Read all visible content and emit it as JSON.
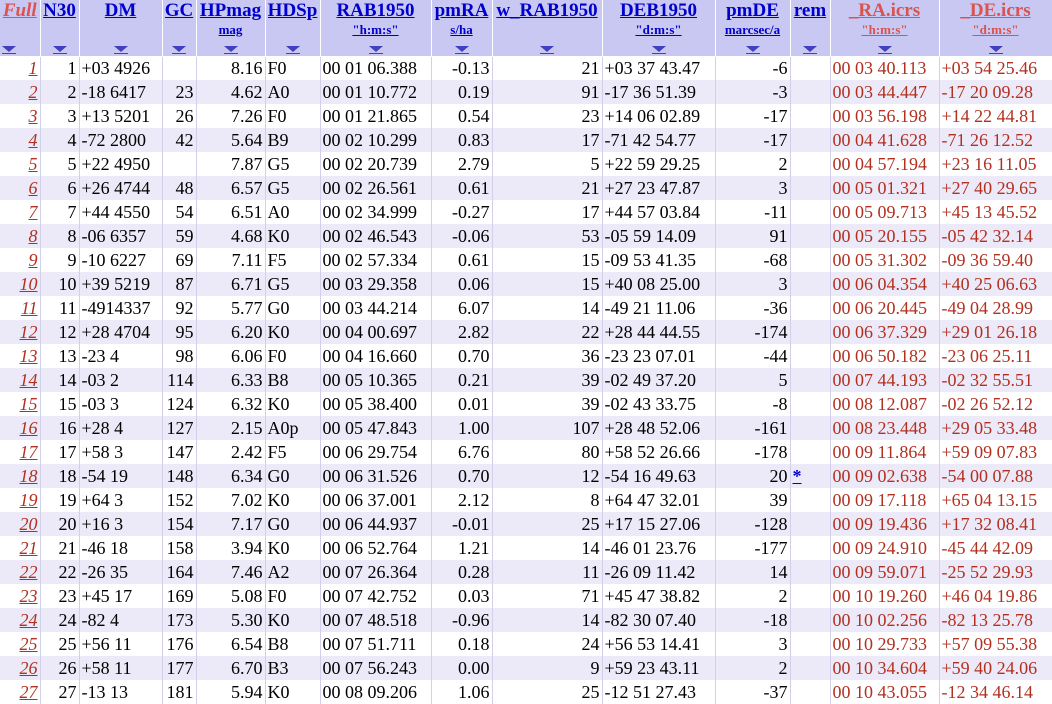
{
  "columns": [
    {
      "key": "full",
      "title": "Full",
      "unit": "",
      "style": "red-italic"
    },
    {
      "key": "n30",
      "title": "N30",
      "unit": ""
    },
    {
      "key": "dm",
      "title": "DM",
      "unit": ""
    },
    {
      "key": "gc",
      "title": "GC",
      "unit": ""
    },
    {
      "key": "hpmag",
      "title": "HPmag",
      "unit": "mag"
    },
    {
      "key": "hdsp",
      "title": "HDSp",
      "unit": ""
    },
    {
      "key": "rab1950",
      "title": "RAB1950",
      "unit": "\"h:m:s\""
    },
    {
      "key": "pmra",
      "title": "pmRA",
      "unit": "s/ha"
    },
    {
      "key": "w_rab1950",
      "title": "w_RAB1950",
      "unit": ""
    },
    {
      "key": "deb1950",
      "title": "DEB1950",
      "unit": "\"d:m:s\""
    },
    {
      "key": "pmde",
      "title": "pmDE",
      "unit": "marcsec/a"
    },
    {
      "key": "rem",
      "title": "rem",
      "unit": ""
    },
    {
      "key": "ra_icrs",
      "title": "_RA.icrs",
      "unit": "\"h:m:s\""
    },
    {
      "key": "de_icrs",
      "title": "_DE.icrs",
      "unit": "\"d:m:s\""
    }
  ],
  "rows": [
    {
      "full": "1",
      "n30": "1",
      "dm": "+03 4926",
      "gc": "",
      "hpmag": "8.16",
      "hdsp": "F0",
      "rab1950": "00 01 06.388",
      "pmra": "-0.13",
      "w_rab1950": "21",
      "deb1950": "+03 37 43.47",
      "pmde": "-6",
      "rem": "",
      "ra_icrs": "00 03 40.113",
      "de_icrs": "+03 54 25.46"
    },
    {
      "full": "2",
      "n30": "2",
      "dm": "-18 6417",
      "gc": "23",
      "hpmag": "4.62",
      "hdsp": "A0",
      "rab1950": "00 01 10.772",
      "pmra": "0.19",
      "w_rab1950": "91",
      "deb1950": "-17 36 51.39",
      "pmde": "-3",
      "rem": "",
      "ra_icrs": "00 03 44.447",
      "de_icrs": "-17 20 09.28"
    },
    {
      "full": "3",
      "n30": "3",
      "dm": "+13 5201",
      "gc": "26",
      "hpmag": "7.26",
      "hdsp": "F0",
      "rab1950": "00 01 21.865",
      "pmra": "0.54",
      "w_rab1950": "23",
      "deb1950": "+14 06 02.89",
      "pmde": "-17",
      "rem": "",
      "ra_icrs": "00 03 56.198",
      "de_icrs": "+14 22 44.81"
    },
    {
      "full": "4",
      "n30": "4",
      "dm": "-72 2800",
      "gc": "42",
      "hpmag": "5.64",
      "hdsp": "B9",
      "rab1950": "00 02 10.299",
      "pmra": "0.83",
      "w_rab1950": "17",
      "deb1950": "-71 42 54.77",
      "pmde": "-17",
      "rem": "",
      "ra_icrs": "00 04 41.628",
      "de_icrs": "-71 26 12.52"
    },
    {
      "full": "5",
      "n30": "5",
      "dm": "+22 4950",
      "gc": "",
      "hpmag": "7.87",
      "hdsp": "G5",
      "rab1950": "00 02 20.739",
      "pmra": "2.79",
      "w_rab1950": "5",
      "deb1950": "+22 59 29.25",
      "pmde": "2",
      "rem": "",
      "ra_icrs": "00 04 57.194",
      "de_icrs": "+23 16 11.05"
    },
    {
      "full": "6",
      "n30": "6",
      "dm": "+26 4744",
      "gc": "48",
      "hpmag": "6.57",
      "hdsp": "G5",
      "rab1950": "00 02 26.561",
      "pmra": "0.61",
      "w_rab1950": "21",
      "deb1950": "+27 23 47.87",
      "pmde": "3",
      "rem": "",
      "ra_icrs": "00 05 01.321",
      "de_icrs": "+27 40 29.65"
    },
    {
      "full": "7",
      "n30": "7",
      "dm": "+44 4550",
      "gc": "54",
      "hpmag": "6.51",
      "hdsp": "A0",
      "rab1950": "00 02 34.999",
      "pmra": "-0.27",
      "w_rab1950": "17",
      "deb1950": "+44 57 03.84",
      "pmde": "-11",
      "rem": "",
      "ra_icrs": "00 05 09.713",
      "de_icrs": "+45 13 45.52"
    },
    {
      "full": "8",
      "n30": "8",
      "dm": "-06 6357",
      "gc": "59",
      "hpmag": "4.68",
      "hdsp": "K0",
      "rab1950": "00 02 46.543",
      "pmra": "-0.06",
      "w_rab1950": "53",
      "deb1950": "-05 59 14.09",
      "pmde": "91",
      "rem": "",
      "ra_icrs": "00 05 20.155",
      "de_icrs": "-05 42 32.14"
    },
    {
      "full": "9",
      "n30": "9",
      "dm": "-10 6227",
      "gc": "69",
      "hpmag": "7.11",
      "hdsp": "F5",
      "rab1950": "00 02 57.334",
      "pmra": "0.61",
      "w_rab1950": "15",
      "deb1950": "-09 53 41.35",
      "pmde": "-68",
      "rem": "",
      "ra_icrs": "00 05 31.302",
      "de_icrs": "-09 36 59.40"
    },
    {
      "full": "10",
      "n30": "10",
      "dm": "+39 5219",
      "gc": "87",
      "hpmag": "6.71",
      "hdsp": "G5",
      "rab1950": "00 03 29.358",
      "pmra": "0.06",
      "w_rab1950": "15",
      "deb1950": "+40 08 25.00",
      "pmde": "3",
      "rem": "",
      "ra_icrs": "00 06 04.354",
      "de_icrs": "+40 25 06.63"
    },
    {
      "full": "11",
      "n30": "11",
      "dm": "-4914337",
      "gc": "92",
      "hpmag": "5.77",
      "hdsp": "G0",
      "rab1950": "00 03 44.214",
      "pmra": "6.07",
      "w_rab1950": "14",
      "deb1950": "-49 21 11.06",
      "pmde": "-36",
      "rem": "",
      "ra_icrs": "00 06 20.445",
      "de_icrs": "-49 04 28.99"
    },
    {
      "full": "12",
      "n30": "12",
      "dm": "+28 4704",
      "gc": "95",
      "hpmag": "6.20",
      "hdsp": "K0",
      "rab1950": "00 04 00.697",
      "pmra": "2.82",
      "w_rab1950": "22",
      "deb1950": "+28 44 44.55",
      "pmde": "-174",
      "rem": "",
      "ra_icrs": "00 06 37.329",
      "de_icrs": "+29 01 26.18"
    },
    {
      "full": "13",
      "n30": "13",
      "dm": "-23 4",
      "gc": "98",
      "hpmag": "6.06",
      "hdsp": "F0",
      "rab1950": "00 04 16.660",
      "pmra": "0.70",
      "w_rab1950": "36",
      "deb1950": "-23 23 07.01",
      "pmde": "-44",
      "rem": "",
      "ra_icrs": "00 06 50.182",
      "de_icrs": "-23 06 25.11"
    },
    {
      "full": "14",
      "n30": "14",
      "dm": "-03 2",
      "gc": "114",
      "hpmag": "6.33",
      "hdsp": "B8",
      "rab1950": "00 05 10.365",
      "pmra": "0.21",
      "w_rab1950": "39",
      "deb1950": "-02 49 37.20",
      "pmde": "5",
      "rem": "",
      "ra_icrs": "00 07 44.193",
      "de_icrs": "-02 32 55.51"
    },
    {
      "full": "15",
      "n30": "15",
      "dm": "-03 3",
      "gc": "124",
      "hpmag": "6.32",
      "hdsp": "K0",
      "rab1950": "00 05 38.400",
      "pmra": "0.01",
      "w_rab1950": "39",
      "deb1950": "-02 43 33.75",
      "pmde": "-8",
      "rem": "",
      "ra_icrs": "00 08 12.087",
      "de_icrs": "-02 26 52.12"
    },
    {
      "full": "16",
      "n30": "16",
      "dm": "+28 4",
      "gc": "127",
      "hpmag": "2.15",
      "hdsp": "A0p",
      "rab1950": "00 05 47.843",
      "pmra": "1.00",
      "w_rab1950": "107",
      "deb1950": "+28 48 52.06",
      "pmde": "-161",
      "rem": "",
      "ra_icrs": "00 08 23.448",
      "de_icrs": "+29 05 33.48"
    },
    {
      "full": "17",
      "n30": "17",
      "dm": "+58 3",
      "gc": "147",
      "hpmag": "2.42",
      "hdsp": "F5",
      "rab1950": "00 06 29.754",
      "pmra": "6.76",
      "w_rab1950": "80",
      "deb1950": "+58 52 26.66",
      "pmde": "-178",
      "rem": "",
      "ra_icrs": "00 09 11.864",
      "de_icrs": "+59 09 07.83"
    },
    {
      "full": "18",
      "n30": "18",
      "dm": "-54 19",
      "gc": "148",
      "hpmag": "6.34",
      "hdsp": "G0",
      "rab1950": "00 06 31.526",
      "pmra": "0.70",
      "w_rab1950": "12",
      "deb1950": "-54 16 49.63",
      "pmde": "20",
      "rem": "*",
      "ra_icrs": "00 09 02.638",
      "de_icrs": "-54 00 07.88"
    },
    {
      "full": "19",
      "n30": "19",
      "dm": "+64 3",
      "gc": "152",
      "hpmag": "7.02",
      "hdsp": "K0",
      "rab1950": "00 06 37.001",
      "pmra": "2.12",
      "w_rab1950": "8",
      "deb1950": "+64 47 32.01",
      "pmde": "39",
      "rem": "",
      "ra_icrs": "00 09 17.118",
      "de_icrs": "+65 04 13.15"
    },
    {
      "full": "20",
      "n30": "20",
      "dm": "+16 3",
      "gc": "154",
      "hpmag": "7.17",
      "hdsp": "G0",
      "rab1950": "00 06 44.937",
      "pmra": "-0.01",
      "w_rab1950": "25",
      "deb1950": "+17 15 27.06",
      "pmde": "-128",
      "rem": "",
      "ra_icrs": "00 09 19.436",
      "de_icrs": "+17 32 08.41"
    },
    {
      "full": "21",
      "n30": "21",
      "dm": "-46 18",
      "gc": "158",
      "hpmag": "3.94",
      "hdsp": "K0",
      "rab1950": "00 06 52.764",
      "pmra": "1.21",
      "w_rab1950": "14",
      "deb1950": "-46 01 23.76",
      "pmde": "-177",
      "rem": "",
      "ra_icrs": "00 09 24.910",
      "de_icrs": "-45 44 42.09"
    },
    {
      "full": "22",
      "n30": "22",
      "dm": "-26 35",
      "gc": "164",
      "hpmag": "7.46",
      "hdsp": "A2",
      "rab1950": "00 07 26.364",
      "pmra": "0.28",
      "w_rab1950": "11",
      "deb1950": "-26 09 11.42",
      "pmde": "14",
      "rem": "",
      "ra_icrs": "00 09 59.071",
      "de_icrs": "-25 52 29.93"
    },
    {
      "full": "23",
      "n30": "23",
      "dm": "+45 17",
      "gc": "169",
      "hpmag": "5.08",
      "hdsp": "F0",
      "rab1950": "00 07 42.752",
      "pmra": "0.03",
      "w_rab1950": "71",
      "deb1950": "+45 47 38.82",
      "pmde": "2",
      "rem": "",
      "ra_icrs": "00 10 19.260",
      "de_icrs": "+46 04 19.86"
    },
    {
      "full": "24",
      "n30": "24",
      "dm": "-82 4",
      "gc": "173",
      "hpmag": "5.30",
      "hdsp": "K0",
      "rab1950": "00 07 48.518",
      "pmra": "-0.96",
      "w_rab1950": "14",
      "deb1950": "-82 30 07.40",
      "pmde": "-18",
      "rem": "",
      "ra_icrs": "00 10 02.256",
      "de_icrs": "-82 13 25.78"
    },
    {
      "full": "25",
      "n30": "25",
      "dm": "+56 11",
      "gc": "176",
      "hpmag": "6.54",
      "hdsp": "B8",
      "rab1950": "00 07 51.711",
      "pmra": "0.18",
      "w_rab1950": "24",
      "deb1950": "+56 53 14.41",
      "pmde": "3",
      "rem": "",
      "ra_icrs": "00 10 29.733",
      "de_icrs": "+57 09 55.38"
    },
    {
      "full": "26",
      "n30": "26",
      "dm": "+58 11",
      "gc": "177",
      "hpmag": "6.70",
      "hdsp": "B3",
      "rab1950": "00 07 56.243",
      "pmra": "0.00",
      "w_rab1950": "9",
      "deb1950": "+59 23 43.11",
      "pmde": "2",
      "rem": "",
      "ra_icrs": "00 10 34.604",
      "de_icrs": "+59 40 24.06"
    },
    {
      "full": "27",
      "n30": "27",
      "dm": "-13 13",
      "gc": "181",
      "hpmag": "5.94",
      "hdsp": "K0",
      "rab1950": "00 08 09.206",
      "pmra": "1.06",
      "w_rab1950": "25",
      "deb1950": "-12 51 27.43",
      "pmde": "-37",
      "rem": "",
      "ra_icrs": "00 10 43.055",
      "de_icrs": "-12 34 46.14"
    }
  ]
}
